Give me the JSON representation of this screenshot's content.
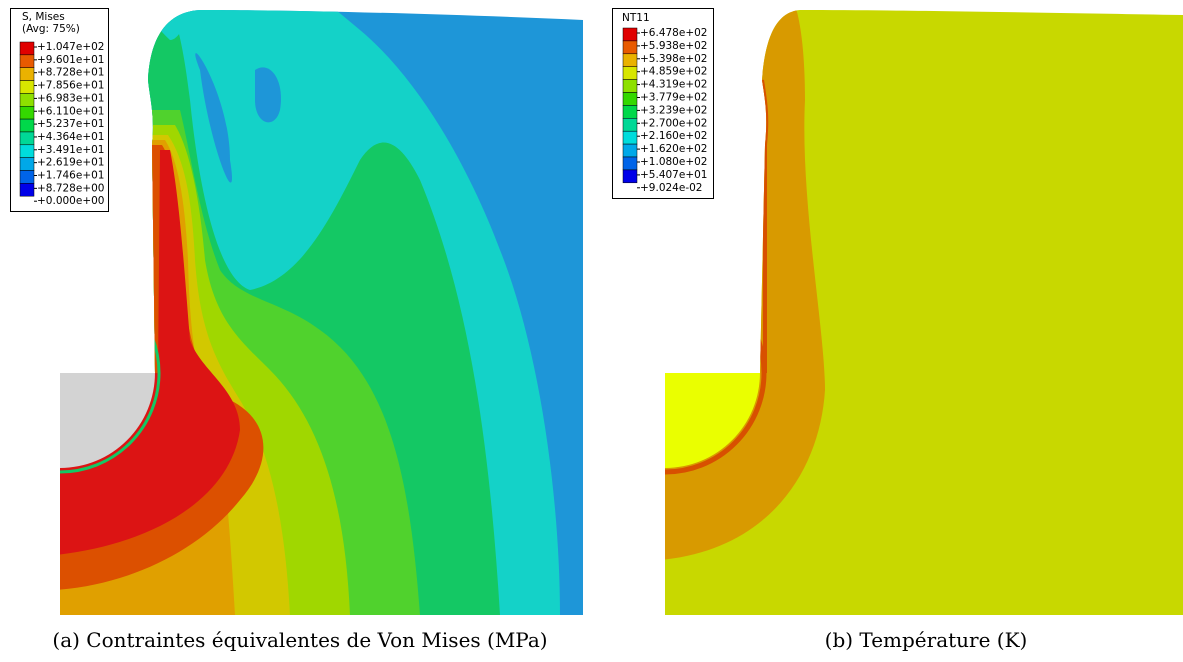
{
  "figures": [
    {
      "legend": {
        "title": "S, Mises",
        "subtitle": "(Avg: 75%)",
        "labels": [
          "+1.047e+02",
          "+9.601e+01",
          "+8.728e+01",
          "+7.856e+01",
          "+6.983e+01",
          "+6.110e+01",
          "+5.237e+01",
          "+4.364e+01",
          "+3.491e+01",
          "+2.619e+01",
          "+1.746e+01",
          "+8.728e+00",
          "+0.000e+00"
        ]
      },
      "caption": "(a) Contraintes équivalentes de Von Mises (MPa)"
    },
    {
      "legend": {
        "title": "NT11",
        "labels": [
          "+6.478e+02",
          "+5.938e+02",
          "+5.398e+02",
          "+4.859e+02",
          "+4.319e+02",
          "+3.779e+02",
          "+3.239e+02",
          "+2.700e+02",
          "+2.160e+02",
          "+1.620e+02",
          "+1.080e+02",
          "+5.407e+01",
          "+9.024e-02"
        ]
      },
      "caption": "(b) Température (K)"
    }
  ]
}
